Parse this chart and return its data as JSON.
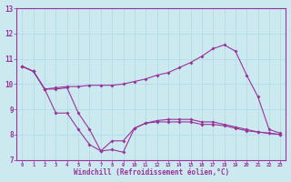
{
  "xlabel": "Windchill (Refroidissement éolien,°C)",
  "background_color": "#cce9f0",
  "line_color": "#993399",
  "xlim": [
    -0.5,
    23.5
  ],
  "ylim": [
    7,
    13
  ],
  "xticks": [
    0,
    1,
    2,
    3,
    4,
    5,
    6,
    7,
    8,
    9,
    10,
    11,
    12,
    13,
    14,
    15,
    16,
    17,
    18,
    19,
    20,
    21,
    22,
    23
  ],
  "yticks": [
    7,
    8,
    9,
    10,
    11,
    12,
    13
  ],
  "grid_color": "#b0dde8",
  "line1_x": [
    0,
    1,
    2,
    3,
    4,
    5,
    6,
    7,
    8,
    9,
    10,
    11,
    12,
    13,
    14,
    15,
    16,
    17,
    18,
    19,
    20,
    21,
    22,
    23
  ],
  "line1_y": [
    10.7,
    10.5,
    9.8,
    8.85,
    8.85,
    8.2,
    7.6,
    7.35,
    7.75,
    7.75,
    8.25,
    8.45,
    8.5,
    8.5,
    8.5,
    8.5,
    8.4,
    8.4,
    8.35,
    8.25,
    8.15,
    8.1,
    8.05,
    8.0
  ],
  "line2_x": [
    0,
    1,
    2,
    3,
    4,
    5,
    6,
    7,
    8,
    9,
    10,
    11,
    12,
    13,
    14,
    15,
    16,
    17,
    18,
    19,
    20,
    21,
    22,
    23
  ],
  "line2_y": [
    10.7,
    10.5,
    9.8,
    9.85,
    9.9,
    9.9,
    9.95,
    9.95,
    9.95,
    10.0,
    10.1,
    10.2,
    10.35,
    10.45,
    10.65,
    10.85,
    11.1,
    11.4,
    11.55,
    11.3,
    10.35,
    9.5,
    8.2,
    8.05
  ],
  "line3_x": [
    0,
    1,
    2,
    3,
    4,
    5,
    6,
    7,
    8,
    9,
    10,
    11,
    12,
    13,
    14,
    15,
    16,
    17,
    18,
    19,
    20,
    21,
    22,
    23
  ],
  "line3_y": [
    10.7,
    10.5,
    9.8,
    9.8,
    9.85,
    8.85,
    8.2,
    7.35,
    7.4,
    7.3,
    8.25,
    8.45,
    8.55,
    8.6,
    8.6,
    8.6,
    8.5,
    8.5,
    8.4,
    8.3,
    8.2,
    8.1,
    8.05,
    8.0
  ]
}
